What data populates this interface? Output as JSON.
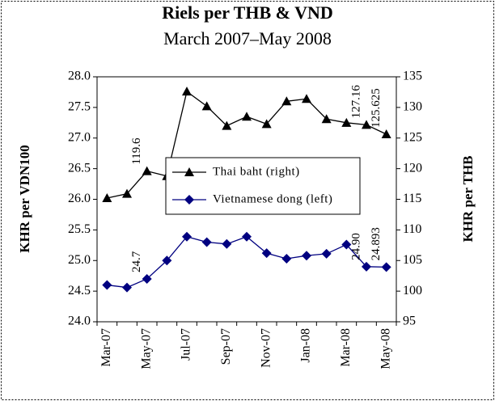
{
  "chart_data": {
    "type": "line",
    "title": "Riels per THB & VND",
    "subtitle": "March 2007–May 2008",
    "ylabel": "KHR per VDN100",
    "y2label": "KHR per THB",
    "categories": [
      "Mar-07",
      null,
      "May-07",
      null,
      "Jul-07",
      null,
      "Sep-07",
      null,
      "Nov-07",
      null,
      "Jan-08",
      null,
      "Mar-08",
      null,
      "May-08"
    ],
    "ylim": [
      24.0,
      28.0
    ],
    "yticks": [
      {
        "value": 24.0,
        "label": "24.0"
      },
      24.5,
      {
        "value": 25.0,
        "label": "25.0"
      },
      25.5,
      {
        "value": 26.0,
        "label": "26.0"
      },
      26.5,
      {
        "value": 27.0,
        "label": "27.0"
      },
      27.5,
      {
        "value": 28.0,
        "label": "28.0"
      }
    ],
    "y2lim": [
      95,
      135
    ],
    "y2ticks": [
      95,
      100,
      105,
      110,
      115,
      120,
      125,
      130,
      135
    ],
    "legend": "center",
    "series": [
      {
        "name": "Thai baht (right)",
        "color": "#000000",
        "marker": "triangle",
        "axis": "y2",
        "values": [
          115.2,
          115.9,
          119.6,
          118.8,
          132.6,
          130.2,
          127.0,
          128.5,
          127.3,
          131.0,
          131.4,
          128.1,
          127.5,
          127.16,
          125.625
        ],
        "value_labels": [
          null,
          null,
          "119.6",
          null,
          null,
          null,
          null,
          null,
          null,
          null,
          null,
          null,
          null,
          "127.16",
          "125.625"
        ]
      },
      {
        "name": "Vietnamese dong (left)",
        "color": "#000080",
        "marker": "diamond",
        "values": [
          24.6,
          24.56,
          24.7,
          25.0,
          25.39,
          25.3,
          25.27,
          25.39,
          25.12,
          25.03,
          25.08,
          25.11,
          25.26,
          24.9,
          24.893
        ],
        "value_labels": [
          null,
          null,
          "24.7",
          null,
          null,
          null,
          null,
          null,
          null,
          null,
          null,
          null,
          null,
          "24.90",
          "24.893"
        ]
      }
    ]
  }
}
